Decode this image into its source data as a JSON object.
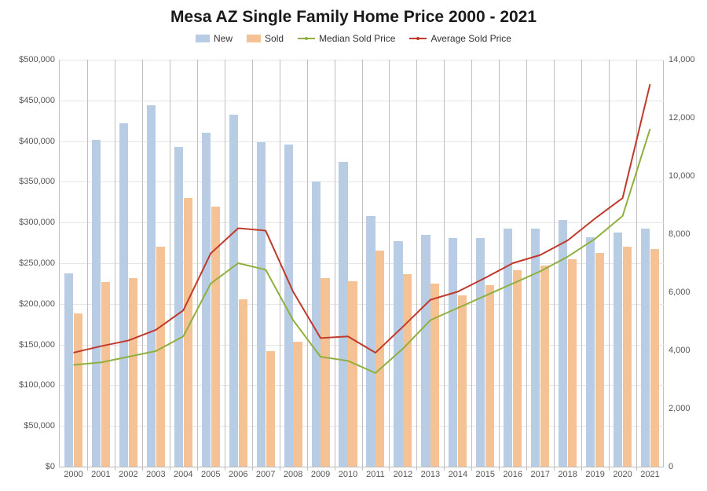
{
  "chart": {
    "type": "bar-line-combo",
    "title": "Mesa AZ Single Family Home Price 2000 - 2021",
    "title_fontsize": 21,
    "title_color": "#1a1a1a",
    "background_color": "#ffffff",
    "grid_color": "#e6e6e6",
    "axis_color": "#bfbfbf",
    "tick_font_size": 11,
    "tick_color": "#555555",
    "categories": [
      "2000",
      "2001",
      "2002",
      "2003",
      "2004",
      "2005",
      "2006",
      "2007",
      "2008",
      "2009",
      "2010",
      "2011",
      "2012",
      "2013",
      "2014",
      "2015",
      "2016",
      "2017",
      "2018",
      "2019",
      "2020",
      "2021"
    ],
    "left_axis": {
      "min": 0,
      "max": 500000,
      "tick_step": 50000,
      "tick_format": "dollar-comma"
    },
    "right_axis": {
      "min": 0,
      "max": 14000,
      "tick_step": 2000,
      "tick_format": "comma"
    },
    "series_bars": [
      {
        "name": "New",
        "color": "#b8cce4",
        "axis": "right",
        "bar_width": 0.32,
        "offset": -0.17,
        "values": [
          6650,
          11250,
          11820,
          12420,
          11000,
          11500,
          12100,
          11150,
          11080,
          9800,
          10500,
          8630,
          7750,
          7970,
          7870,
          7870,
          8200,
          8180,
          8500,
          7900,
          8050,
          8200
        ]
      },
      {
        "name": "Sold",
        "color": "#f5c295",
        "axis": "right",
        "bar_width": 0.32,
        "offset": 0.17,
        "values": [
          5280,
          6350,
          6480,
          7580,
          9250,
          8950,
          5750,
          3970,
          4300,
          6480,
          6380,
          7420,
          6620,
          6300,
          5900,
          6250,
          6750,
          6920,
          7140,
          7350,
          7560,
          7490
        ]
      }
    ],
    "series_lines": [
      {
        "name": "Median Sold Price",
        "color": "#8fb03e",
        "axis": "left",
        "line_width": 2,
        "values": [
          125000,
          128000,
          135000,
          142000,
          160000,
          225000,
          250000,
          242000,
          180000,
          135000,
          130000,
          115000,
          145000,
          180000,
          195000,
          210000,
          225000,
          240000,
          258000,
          280000,
          308000,
          415000
        ]
      },
      {
        "name": "Average Sold Price",
        "color": "#c0392b",
        "axis": "left",
        "line_width": 2,
        "values": [
          140000,
          148000,
          155000,
          168000,
          192000,
          262000,
          293000,
          290000,
          215000,
          158000,
          160000,
          140000,
          172000,
          205000,
          215000,
          232000,
          250000,
          260000,
          278000,
          305000,
          330000,
          470000
        ]
      }
    ],
    "legend": {
      "items": [
        {
          "label": "New",
          "kind": "bar",
          "color": "#b8cce4"
        },
        {
          "label": "Sold",
          "kind": "bar",
          "color": "#f5c295"
        },
        {
          "label": "Median Sold Price",
          "kind": "line",
          "color": "#8fb03e"
        },
        {
          "label": "Average Sold Price",
          "kind": "line",
          "color": "#c0392b"
        }
      ]
    }
  }
}
